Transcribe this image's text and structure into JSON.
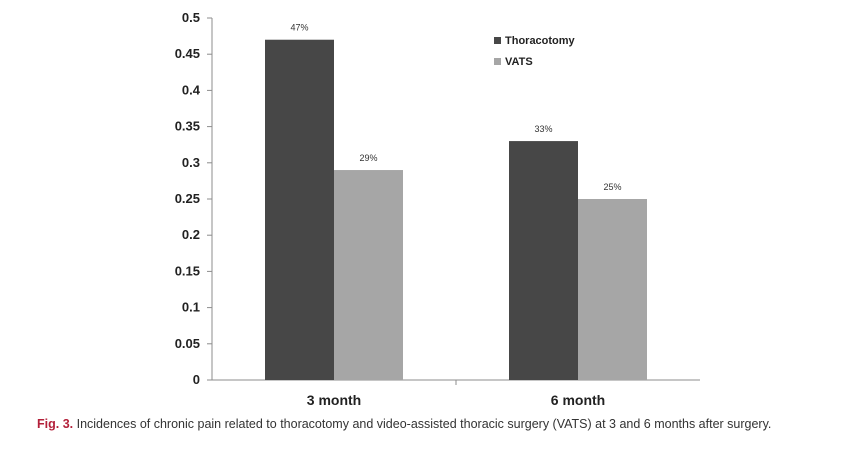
{
  "chart_data": {
    "type": "bar",
    "categories": [
      "3 month",
      "6 month"
    ],
    "series": [
      {
        "name": "Thoracotomy",
        "values": [
          0.47,
          0.33
        ],
        "labels": [
          "47%",
          "33%"
        ],
        "color": "#474747"
      },
      {
        "name": "VATS",
        "values": [
          0.29,
          0.25
        ],
        "labels": [
          "29%",
          "25%"
        ],
        "color": "#a6a6a6"
      }
    ],
    "ylim": [
      0,
      0.5
    ],
    "yticks": [
      "0",
      "0.05",
      "0.1",
      "0.15",
      "0.2",
      "0.25",
      "0.3",
      "0.35",
      "0.4",
      "0.45",
      "0.5"
    ],
    "legend_position": "top-right",
    "grid": false
  },
  "caption": {
    "label": "Fig. 3.",
    "text": " Incidences of chronic pain related to thoracotomy and video-assisted thoracic surgery (VATS) at 3 and 6 months after surgery."
  }
}
